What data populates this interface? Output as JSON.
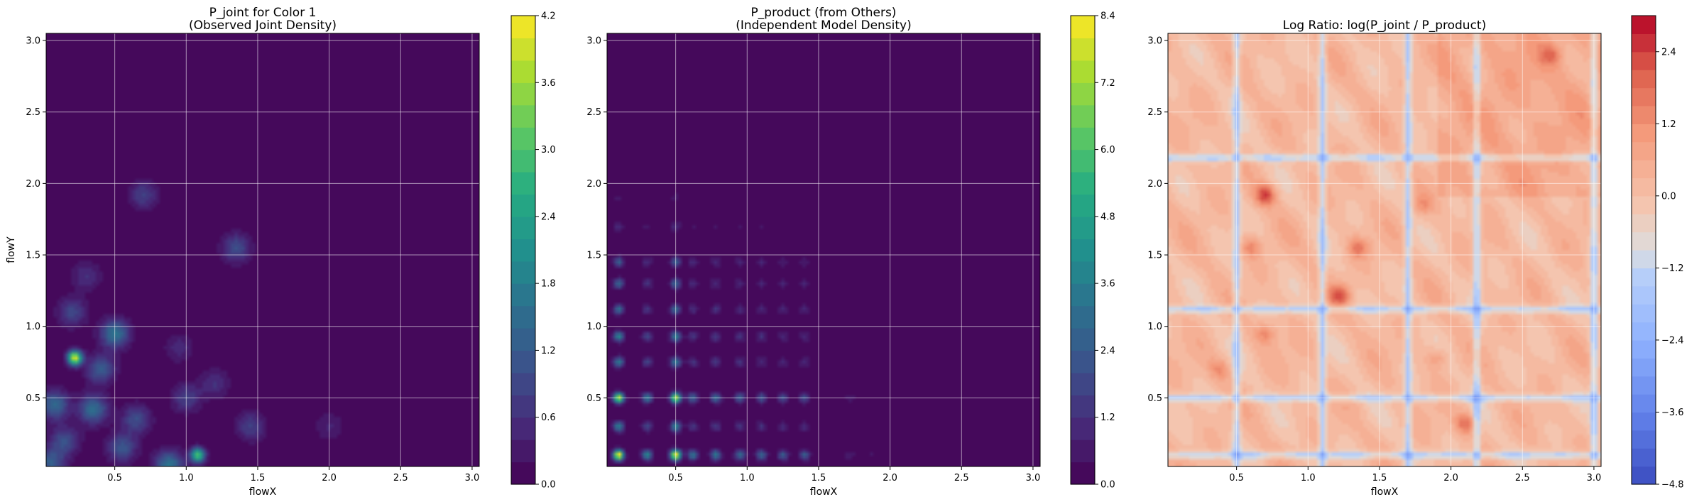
{
  "chart_data": [
    {
      "type": "heatmap",
      "title_lines": [
        "P_joint for Color 1",
        "(Observed Joint Density)"
      ],
      "xlabel": "flowX",
      "ylabel": "flowY",
      "xlim": [
        0.02,
        3.05
      ],
      "ylim": [
        0.02,
        3.05
      ],
      "xticks": [
        "0.5",
        "1.0",
        "1.5",
        "2.0",
        "2.5",
        "3.0"
      ],
      "yticks": [
        "0.5",
        "1.0",
        "1.5",
        "2.0",
        "2.5",
        "3.0"
      ],
      "grid": true,
      "colormap": "viridis",
      "colorbar": {
        "min": 0.0,
        "max": 4.2,
        "levels": 21,
        "ticks": [
          "0.0",
          "0.6",
          "1.2",
          "1.8",
          "2.4",
          "3.0",
          "3.6",
          "4.2"
        ]
      },
      "hotspots": [
        {
          "x": 0.22,
          "y": 0.78,
          "value": 4.0
        },
        {
          "x": 0.08,
          "y": 0.45,
          "value": 1.4
        },
        {
          "x": 0.35,
          "y": 0.42,
          "value": 1.5
        },
        {
          "x": 0.5,
          "y": 0.95,
          "value": 1.6
        },
        {
          "x": 0.4,
          "y": 0.7,
          "value": 1.2
        },
        {
          "x": 1.08,
          "y": 0.1,
          "value": 3.0
        },
        {
          "x": 0.88,
          "y": 0.03,
          "value": 1.6
        },
        {
          "x": 0.65,
          "y": 0.35,
          "value": 1.0
        },
        {
          "x": 1.35,
          "y": 1.55,
          "value": 1.0
        },
        {
          "x": 0.7,
          "y": 1.92,
          "value": 0.8
        },
        {
          "x": 0.2,
          "y": 1.1,
          "value": 0.9
        },
        {
          "x": 1.0,
          "y": 0.5,
          "value": 0.8
        },
        {
          "x": 0.15,
          "y": 0.2,
          "value": 1.0
        },
        {
          "x": 0.55,
          "y": 0.15,
          "value": 1.1
        },
        {
          "x": 1.45,
          "y": 0.3,
          "value": 0.8
        },
        {
          "x": 1.2,
          "y": 0.6,
          "value": 0.6
        },
        {
          "x": 0.3,
          "y": 1.35,
          "value": 0.6
        },
        {
          "x": 0.95,
          "y": 0.85,
          "value": 0.5
        },
        {
          "x": 2.0,
          "y": 0.3,
          "value": 0.4
        },
        {
          "x": 0.05,
          "y": 0.05,
          "value": 1.2
        }
      ]
    },
    {
      "type": "heatmap",
      "title_lines": [
        "P_product (from Others)",
        "(Independent Model Density)"
      ],
      "xlabel": "flowX",
      "ylabel": "",
      "xlim": [
        0.02,
        3.05
      ],
      "ylim": [
        0.02,
        3.05
      ],
      "xticks": [
        "0.5",
        "1.0",
        "1.5",
        "2.0",
        "2.5",
        "3.0"
      ],
      "yticks": [
        "0.5",
        "1.0",
        "1.5",
        "2.0",
        "2.5",
        "3.0"
      ],
      "grid": true,
      "colormap": "viridis",
      "colorbar": {
        "min": 0.0,
        "max": 8.4,
        "levels": 21,
        "ticks": [
          "0.0",
          "1.2",
          "2.4",
          "3.6",
          "4.8",
          "6.0",
          "7.2",
          "8.4"
        ]
      },
      "row_peaks": [
        {
          "y": 0.1,
          "value": 3.5
        },
        {
          "y": 0.5,
          "value": 3.0
        },
        {
          "y": 0.3,
          "value": 1.5
        },
        {
          "y": 0.75,
          "value": 1.4
        },
        {
          "y": 0.93,
          "value": 1.5
        },
        {
          "y": 1.12,
          "value": 1.2
        },
        {
          "y": 1.3,
          "value": 1.1
        },
        {
          "y": 1.45,
          "value": 1.0
        },
        {
          "y": 1.7,
          "value": 0.7
        },
        {
          "y": 1.9,
          "value": 0.5
        },
        {
          "y": 2.18,
          "value": 0.6
        }
      ],
      "col_peaks": [
        {
          "x": 0.1,
          "value": 3.5
        },
        {
          "x": 0.5,
          "value": 3.5
        },
        {
          "x": 0.3,
          "value": 1.6
        },
        {
          "x": 0.62,
          "value": 1.3
        },
        {
          "x": 0.78,
          "value": 1.4
        },
        {
          "x": 0.95,
          "value": 1.2
        },
        {
          "x": 1.1,
          "value": 1.1
        },
        {
          "x": 1.25,
          "value": 1.0
        },
        {
          "x": 1.4,
          "value": 1.0
        },
        {
          "x": 1.72,
          "value": 0.6
        },
        {
          "x": 1.88,
          "value": 0.5
        },
        {
          "x": 2.18,
          "value": 0.6
        }
      ]
    },
    {
      "type": "heatmap",
      "title_lines": [
        "Log Ratio: log(P_joint / P_product)"
      ],
      "xlabel": "flowX",
      "ylabel": "",
      "xlim": [
        0.02,
        3.05
      ],
      "ylim": [
        0.02,
        3.05
      ],
      "xticks": [
        "0.5",
        "1.0",
        "1.5",
        "2.0",
        "2.5",
        "3.0"
      ],
      "yticks": [
        "0.5",
        "1.0",
        "1.5",
        "2.0",
        "2.5",
        "3.0"
      ],
      "grid": true,
      "colormap": "coolwarm",
      "colorbar": {
        "min": -4.8,
        "max": 3.0,
        "levels": 26,
        "ticks": [
          "-4.8",
          "-3.6",
          "-2.4",
          "-1.2",
          "0.0",
          "1.2",
          "2.4"
        ]
      },
      "blue_lines_x": [
        0.5,
        1.1,
        1.7,
        2.18,
        3.0
      ],
      "blue_lines_y": [
        0.1,
        0.5,
        1.12,
        2.18
      ],
      "red_spots": [
        {
          "x": 0.7,
          "y": 1.92,
          "value": 2.2
        },
        {
          "x": 1.22,
          "y": 1.22,
          "value": 1.8
        },
        {
          "x": 2.1,
          "y": 0.32,
          "value": 1.6
        },
        {
          "x": 1.35,
          "y": 1.55,
          "value": 1.4
        },
        {
          "x": 0.6,
          "y": 1.55,
          "value": 1.2
        },
        {
          "x": 0.7,
          "y": 0.95,
          "value": 1.2
        },
        {
          "x": 0.38,
          "y": 0.7,
          "value": 1.0
        },
        {
          "x": 2.7,
          "y": 2.9,
          "value": 1.2
        },
        {
          "x": 1.8,
          "y": 1.85,
          "value": 0.9
        },
        {
          "x": 1.9,
          "y": 0.78,
          "value": 0.9
        }
      ]
    }
  ]
}
